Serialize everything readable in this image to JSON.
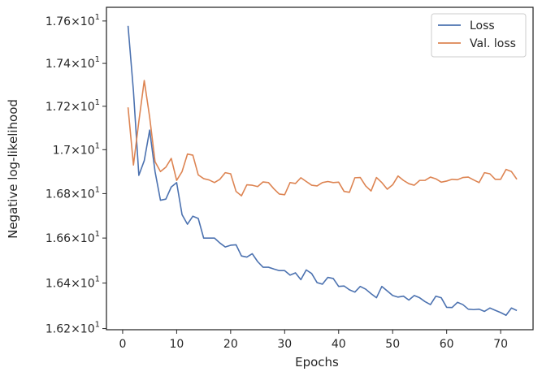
{
  "chart_data": {
    "type": "line",
    "title": "",
    "xlabel": "Epochs",
    "ylabel": "Negative log-likelihood",
    "xlim": [
      -3,
      76
    ],
    "ylim": [
      16.195,
      17.665
    ],
    "y_scale": "log",
    "grid": false,
    "legend_position": "top-right",
    "x_ticks": [
      0,
      10,
      20,
      30,
      40,
      50,
      60,
      70
    ],
    "x_tick_labels": [
      "0",
      "10",
      "20",
      "30",
      "40",
      "50",
      "60",
      "70"
    ],
    "y_ticks": [
      16.2,
      16.4,
      16.6,
      16.8,
      17.0,
      17.2,
      17.4,
      17.6
    ],
    "y_tick_labels": [
      {
        "mantissa": "1.62",
        "base": "10",
        "exp": "1"
      },
      {
        "mantissa": "1.64",
        "base": "10",
        "exp": "1"
      },
      {
        "mantissa": "1.66",
        "base": "10",
        "exp": "1"
      },
      {
        "mantissa": "1.68",
        "base": "10",
        "exp": "1"
      },
      {
        "mantissa": "1.7",
        "base": "10",
        "exp": "1"
      },
      {
        "mantissa": "1.72",
        "base": "10",
        "exp": "1"
      },
      {
        "mantissa": "1.74",
        "base": "10",
        "exp": "1"
      },
      {
        "mantissa": "1.76",
        "base": "10",
        "exp": "1"
      }
    ],
    "x": [
      1,
      2,
      3,
      4,
      5,
      6,
      7,
      8,
      9,
      10,
      11,
      12,
      13,
      14,
      15,
      16,
      17,
      18,
      19,
      20,
      21,
      22,
      23,
      24,
      25,
      26,
      27,
      28,
      29,
      30,
      31,
      32,
      33,
      34,
      35,
      36,
      37,
      38,
      39,
      40,
      41,
      42,
      43,
      44,
      45,
      46,
      47,
      48,
      49,
      50,
      51,
      52,
      53,
      54,
      55,
      56,
      57,
      58,
      59,
      60,
      61,
      62,
      63,
      64,
      65,
      66,
      67,
      68,
      69,
      70,
      71,
      72,
      73
    ],
    "series": [
      {
        "name": "Loss",
        "color": "#4c72b0",
        "values": [
          17.577,
          17.27,
          16.883,
          16.95,
          17.09,
          16.9,
          16.77,
          16.775,
          16.83,
          16.85,
          16.705,
          16.662,
          16.698,
          16.688,
          16.6,
          16.6,
          16.6,
          16.578,
          16.56,
          16.568,
          16.57,
          16.52,
          16.515,
          16.53,
          16.495,
          16.47,
          16.47,
          16.462,
          16.455,
          16.455,
          16.435,
          16.445,
          16.415,
          16.458,
          16.442,
          16.402,
          16.395,
          16.425,
          16.42,
          16.385,
          16.387,
          16.37,
          16.36,
          16.385,
          16.373,
          16.353,
          16.335,
          16.385,
          16.365,
          16.345,
          16.338,
          16.342,
          16.325,
          16.345,
          16.335,
          16.318,
          16.305,
          16.342,
          16.335,
          16.293,
          16.292,
          16.315,
          16.305,
          16.285,
          16.283,
          16.285,
          16.275,
          16.29,
          16.28,
          16.27,
          16.258,
          16.29,
          16.279
        ]
      },
      {
        "name": "Val. loss",
        "color": "#dd8452",
        "values": [
          17.195,
          16.93,
          17.13,
          17.32,
          17.15,
          16.945,
          16.9,
          16.92,
          16.96,
          16.86,
          16.9,
          16.98,
          16.975,
          16.885,
          16.868,
          16.862,
          16.85,
          16.865,
          16.895,
          16.89,
          16.81,
          16.79,
          16.84,
          16.838,
          16.832,
          16.853,
          16.85,
          16.822,
          16.798,
          16.795,
          16.85,
          16.846,
          16.872,
          16.855,
          16.838,
          16.835,
          16.85,
          16.855,
          16.85,
          16.852,
          16.81,
          16.806,
          16.872,
          16.873,
          16.835,
          16.812,
          16.873,
          16.85,
          16.82,
          16.84,
          16.88,
          16.86,
          16.845,
          16.838,
          16.86,
          16.86,
          16.875,
          16.867,
          16.852,
          16.857,
          16.865,
          16.863,
          16.873,
          16.875,
          16.862,
          16.85,
          16.895,
          16.89,
          16.865,
          16.865,
          16.91,
          16.9,
          16.865
        ]
      }
    ]
  }
}
